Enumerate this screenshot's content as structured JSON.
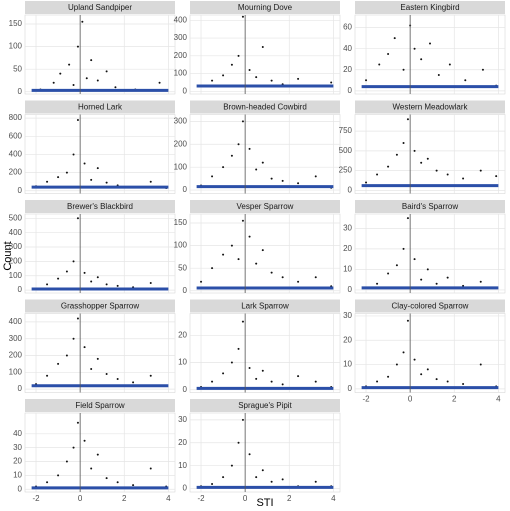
{
  "xlabel": "STI",
  "ylabel": "Count",
  "chart_data": [
    {
      "type": "scatter",
      "title": "Upland Sandpiper",
      "xlim": [
        -2.5,
        4.3
      ],
      "ylim": [
        -5,
        170
      ],
      "xticks": [
        -2,
        0,
        2,
        4
      ],
      "yticks": [
        0,
        50,
        100,
        150
      ],
      "vline": 0,
      "grid": true,
      "series": [
        {
          "color": "#111111",
          "x": [
            -1.8,
            -1.2,
            -0.9,
            -0.5,
            -0.3,
            -0.1,
            0.1,
            0.3,
            0.5,
            0.8,
            1.2,
            1.6,
            2.5,
            3.6
          ],
          "values": [
            5,
            20,
            40,
            60,
            15,
            100,
            155,
            30,
            70,
            25,
            45,
            10,
            5,
            20
          ]
        },
        {
          "color": "#2b4fa8",
          "mode": "line",
          "x": [
            -2.2,
            4
          ],
          "values": [
            3,
            3
          ]
        }
      ]
    },
    {
      "type": "scatter",
      "title": "Mourning Dove",
      "xlim": [
        -2.5,
        4.3
      ],
      "ylim": [
        -15,
        430
      ],
      "xticks": [
        -2,
        0,
        2,
        4
      ],
      "yticks": [
        0,
        100,
        200,
        300,
        400
      ],
      "vline": 0,
      "grid": true,
      "series": [
        {
          "color": "#111111",
          "x": [
            -2,
            -1.5,
            -1,
            -0.6,
            -0.3,
            -0.1,
            0.2,
            0.5,
            0.8,
            1.2,
            1.7,
            2.4,
            3.2,
            3.9
          ],
          "values": [
            30,
            60,
            90,
            150,
            200,
            420,
            120,
            80,
            250,
            60,
            40,
            70,
            30,
            50
          ]
        },
        {
          "color": "#2b4fa8",
          "mode": "line",
          "x": [
            -2.2,
            4
          ],
          "values": [
            30,
            30
          ]
        }
      ]
    },
    {
      "type": "scatter",
      "title": "Eastern Kingbird",
      "xlim": [
        -2.5,
        4.3
      ],
      "ylim": [
        -3,
        72
      ],
      "xticks": [
        -2,
        0,
        2,
        4
      ],
      "yticks": [
        0,
        20,
        40,
        60
      ],
      "vline": 0,
      "grid": true,
      "series": [
        {
          "color": "#111111",
          "x": [
            -2,
            -1.4,
            -1,
            -0.7,
            -0.3,
            0,
            0.2,
            0.5,
            0.9,
            1.3,
            1.8,
            2.5,
            3.3,
            3.9
          ],
          "values": [
            10,
            25,
            35,
            50,
            20,
            62,
            40,
            30,
            45,
            15,
            25,
            10,
            20,
            5
          ]
        },
        {
          "color": "#2b4fa8",
          "mode": "line",
          "x": [
            -2.2,
            4
          ],
          "values": [
            4,
            4
          ]
        }
      ]
    },
    {
      "type": "scatter",
      "title": "Horned Lark",
      "xlim": [
        -2.5,
        4.3
      ],
      "ylim": [
        -30,
        840
      ],
      "xticks": [
        -2,
        0,
        2,
        4
      ],
      "yticks": [
        0,
        200,
        400,
        600,
        800
      ],
      "vline": 0,
      "grid": true,
      "series": [
        {
          "color": "#111111",
          "x": [
            -2,
            -1.5,
            -1,
            -0.6,
            -0.3,
            -0.1,
            0.2,
            0.5,
            0.8,
            1.2,
            1.7,
            2.4,
            3.2,
            3.9
          ],
          "values": [
            50,
            100,
            150,
            200,
            400,
            780,
            300,
            120,
            250,
            90,
            60,
            40,
            100,
            30
          ]
        },
        {
          "color": "#2b4fa8",
          "mode": "line",
          "x": [
            -2.2,
            4
          ],
          "values": [
            40,
            40
          ]
        }
      ]
    },
    {
      "type": "scatter",
      "title": "Brown-headed Cowbird",
      "xlim": [
        -2.5,
        4.3
      ],
      "ylim": [
        -15,
        330
      ],
      "xticks": [
        -2,
        0,
        2,
        4
      ],
      "yticks": [
        0,
        100,
        200,
        300
      ],
      "vline": 0,
      "grid": true,
      "series": [
        {
          "color": "#111111",
          "x": [
            -2,
            -1.5,
            -1,
            -0.6,
            -0.3,
            -0.1,
            0.2,
            0.5,
            0.8,
            1.2,
            1.7,
            2.4,
            3.2,
            3.9
          ],
          "values": [
            20,
            60,
            100,
            150,
            200,
            300,
            180,
            90,
            120,
            50,
            40,
            30,
            60,
            10
          ]
        },
        {
          "color": "#2b4fa8",
          "mode": "line",
          "x": [
            -2.2,
            4
          ],
          "values": [
            15,
            15
          ]
        }
      ]
    },
    {
      "type": "scatter",
      "title": "Western Meadowlark",
      "xlim": [
        -2.5,
        4.3
      ],
      "ylim": [
        -40,
        960
      ],
      "xticks": [
        -2,
        0,
        2,
        4
      ],
      "yticks": [
        0,
        250,
        500,
        750
      ],
      "vline": 0,
      "grid": true,
      "series": [
        {
          "color": "#111111",
          "x": [
            -2,
            -1.5,
            -1,
            -0.6,
            -0.3,
            -0.1,
            0.2,
            0.5,
            0.8,
            1.2,
            1.7,
            2.4,
            3.2,
            3.9
          ],
          "values": [
            100,
            200,
            300,
            450,
            600,
            900,
            500,
            350,
            400,
            250,
            200,
            150,
            250,
            180
          ]
        },
        {
          "color": "#2b4fa8",
          "mode": "line",
          "x": [
            -2.2,
            4
          ],
          "values": [
            60,
            60
          ]
        }
      ]
    },
    {
      "type": "scatter",
      "title": "Brewer's Blackbird",
      "xlim": [
        -2.5,
        4.3
      ],
      "ylim": [
        -20,
        530
      ],
      "xticks": [
        -2,
        0,
        2,
        4
      ],
      "yticks": [
        0,
        100,
        200,
        300,
        400,
        500
      ],
      "vline": 0,
      "grid": true,
      "series": [
        {
          "color": "#111111",
          "x": [
            -2,
            -1.5,
            -1,
            -0.6,
            -0.3,
            -0.1,
            0.2,
            0.5,
            0.8,
            1.2,
            1.7,
            2.4,
            3.2,
            3.9
          ],
          "values": [
            10,
            40,
            80,
            130,
            200,
            500,
            120,
            60,
            90,
            40,
            30,
            20,
            50,
            10
          ]
        },
        {
          "color": "#2b4fa8",
          "mode": "line",
          "x": [
            -2.2,
            4
          ],
          "values": [
            8,
            8
          ]
        }
      ]
    },
    {
      "type": "scatter",
      "title": "Vesper Sparrow",
      "xlim": [
        -2.5,
        4.3
      ],
      "ylim": [
        -5,
        170
      ],
      "xticks": [
        -2,
        0,
        2,
        4
      ],
      "yticks": [
        0,
        50,
        100,
        150
      ],
      "vline": 0,
      "grid": true,
      "series": [
        {
          "color": "#111111",
          "x": [
            -2,
            -1.5,
            -1,
            -0.6,
            -0.3,
            -0.1,
            0.2,
            0.5,
            0.8,
            1.2,
            1.7,
            2.4,
            3.2,
            3.9
          ],
          "values": [
            20,
            50,
            80,
            100,
            70,
            155,
            120,
            60,
            90,
            40,
            30,
            20,
            30,
            10
          ]
        },
        {
          "color": "#2b4fa8",
          "mode": "line",
          "x": [
            -2.2,
            4
          ],
          "values": [
            6,
            6
          ]
        }
      ]
    },
    {
      "type": "scatter",
      "title": "Baird's Sparrow",
      "xlim": [
        -2.5,
        4.3
      ],
      "ylim": [
        -1.5,
        37
      ],
      "xticks": [
        -2,
        0,
        2,
        4
      ],
      "yticks": [
        0,
        10,
        20,
        30
      ],
      "vline": 0,
      "grid": true,
      "series": [
        {
          "color": "#111111",
          "x": [
            -2,
            -1.5,
            -1,
            -0.6,
            -0.3,
            -0.1,
            0.2,
            0.5,
            0.8,
            1.2,
            1.7,
            2.4,
            3.2,
            3.9
          ],
          "values": [
            1,
            3,
            8,
            12,
            20,
            35,
            15,
            5,
            10,
            3,
            6,
            2,
            4,
            1
          ]
        },
        {
          "color": "#2b4fa8",
          "mode": "line",
          "x": [
            -2.2,
            4
          ],
          "values": [
            1,
            1
          ]
        }
      ]
    },
    {
      "type": "scatter",
      "title": "Grasshopper Sparrow",
      "xlim": [
        -2.5,
        4.3
      ],
      "ylim": [
        -20,
        450
      ],
      "xticks": [
        -2,
        0,
        2,
        4
      ],
      "yticks": [
        0,
        100,
        200,
        300,
        400
      ],
      "vline": 0,
      "grid": true,
      "series": [
        {
          "color": "#111111",
          "x": [
            -2,
            -1.5,
            -1,
            -0.6,
            -0.3,
            -0.1,
            0.2,
            0.5,
            0.8,
            1.2,
            1.7,
            2.4,
            3.2,
            3.9
          ],
          "values": [
            30,
            80,
            150,
            200,
            300,
            420,
            250,
            120,
            180,
            90,
            60,
            40,
            80,
            20
          ]
        },
        {
          "color": "#2b4fa8",
          "mode": "line",
          "x": [
            -2.2,
            4
          ],
          "values": [
            20,
            20
          ]
        }
      ]
    },
    {
      "type": "scatter",
      "title": "Lark Sparrow",
      "xlim": [
        -2.5,
        4.3
      ],
      "ylim": [
        -1,
        28
      ],
      "xticks": [
        -2,
        0,
        2,
        4
      ],
      "yticks": [
        0,
        10,
        20
      ],
      "vline": 0,
      "grid": true,
      "series": [
        {
          "color": "#111111",
          "x": [
            -2,
            -1.5,
            -1,
            -0.6,
            -0.3,
            -0.1,
            0.2,
            0.5,
            0.8,
            1.2,
            1.7,
            2.4,
            3.2,
            3.9
          ],
          "values": [
            1,
            3,
            6,
            10,
            15,
            25,
            8,
            4,
            7,
            3,
            2,
            5,
            3,
            1
          ]
        },
        {
          "color": "#2b4fa8",
          "mode": "line",
          "x": [
            -2.2,
            4
          ],
          "values": [
            0.5,
            0.5
          ]
        }
      ]
    },
    {
      "type": "scatter",
      "title": "Clay-colored Sparrow",
      "xlim": [
        -2.5,
        4.3
      ],
      "ylim": [
        -1.5,
        31
      ],
      "xticks": [
        -2,
        0,
        2,
        4
      ],
      "yticks": [
        0,
        10,
        20,
        30
      ],
      "vline": 0,
      "grid": true,
      "series": [
        {
          "color": "#111111",
          "x": [
            -2,
            -1.5,
            -1,
            -0.6,
            -0.3,
            -0.1,
            0.2,
            0.5,
            0.8,
            1.2,
            1.7,
            2.4,
            3.2,
            3.9
          ],
          "values": [
            1,
            3,
            5,
            10,
            15,
            28,
            12,
            6,
            8,
            4,
            3,
            2,
            10,
            1
          ]
        },
        {
          "color": "#2b4fa8",
          "mode": "line",
          "x": [
            -2.2,
            4
          ],
          "values": [
            0.5,
            0.5
          ]
        }
      ]
    },
    {
      "type": "scatter",
      "title": "Field Sparrow",
      "xlim": [
        -2.5,
        4.3
      ],
      "ylim": [
        -2,
        55
      ],
      "xticks": [
        -2,
        0,
        2,
        4
      ],
      "yticks": [
        0,
        10,
        20,
        30,
        40
      ],
      "vline": 0,
      "grid": true,
      "series": [
        {
          "color": "#111111",
          "x": [
            -2,
            -1.5,
            -1,
            -0.6,
            -0.3,
            -0.1,
            0.2,
            0.5,
            0.8,
            1.2,
            1.7,
            2.4,
            3.2,
            3.9
          ],
          "values": [
            2,
            5,
            10,
            20,
            30,
            48,
            35,
            15,
            25,
            8,
            5,
            3,
            15,
            2
          ]
        },
        {
          "color": "#2b4fa8",
          "mode": "line",
          "x": [
            -2.2,
            4
          ],
          "values": [
            1,
            1
          ]
        }
      ]
    },
    {
      "type": "scatter",
      "title": "Sprague's Pipit",
      "xlim": [
        -2.5,
        4.3
      ],
      "ylim": [
        -1.5,
        33
      ],
      "xticks": [
        -2,
        0,
        2,
        4
      ],
      "yticks": [
        0,
        10,
        20,
        30
      ],
      "vline": 0,
      "grid": true,
      "series": [
        {
          "color": "#111111",
          "x": [
            -2,
            -1.5,
            -1,
            -0.6,
            -0.3,
            -0.1,
            0.2,
            0.5,
            0.8,
            1.2,
            1.7,
            2.4,
            3.2,
            3.9
          ],
          "values": [
            1,
            2,
            5,
            10,
            20,
            30,
            15,
            5,
            8,
            3,
            4,
            1,
            3,
            1
          ]
        },
        {
          "color": "#2b4fa8",
          "mode": "line",
          "x": [
            -2.2,
            4
          ],
          "values": [
            0.5,
            0.5
          ]
        }
      ]
    }
  ]
}
